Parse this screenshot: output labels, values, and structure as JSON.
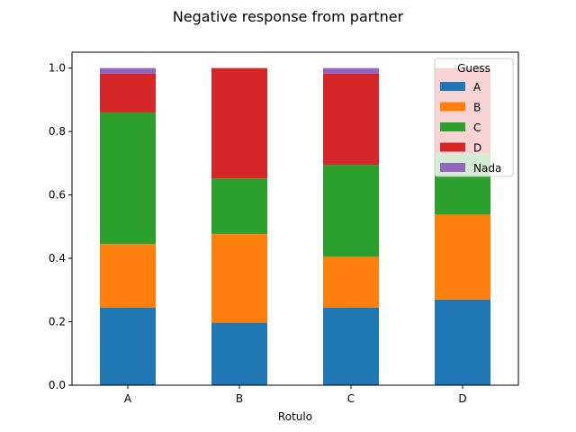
{
  "chart_data": {
    "type": "bar",
    "stacked": true,
    "title": "Negative response from partner",
    "xlabel": "Rotulo",
    "ylabel": "",
    "categories": [
      "A",
      "B",
      "C",
      "D"
    ],
    "ylim": [
      0,
      1.05
    ],
    "yticks": [
      "0.0",
      "0.2",
      "0.4",
      "0.6",
      "0.8",
      "1.0"
    ],
    "grid": false,
    "legend": {
      "title": "Guess",
      "placement": "top-right"
    },
    "series": [
      {
        "name": "A",
        "color": "#1f77b4",
        "values": [
          0.245,
          0.197,
          0.245,
          0.27
        ]
      },
      {
        "name": "B",
        "color": "#ff7f0e",
        "values": [
          0.2,
          0.28,
          0.16,
          0.268
        ]
      },
      {
        "name": "C",
        "color": "#2ca02c",
        "values": [
          0.415,
          0.175,
          0.29,
          0.192
        ]
      },
      {
        "name": "D",
        "color": "#d62728",
        "values": [
          0.122,
          0.348,
          0.287,
          0.27
        ]
      },
      {
        "name": "Nada",
        "color": "#9467bd",
        "values": [
          0.018,
          0.0,
          0.018,
          0.0
        ]
      }
    ]
  }
}
